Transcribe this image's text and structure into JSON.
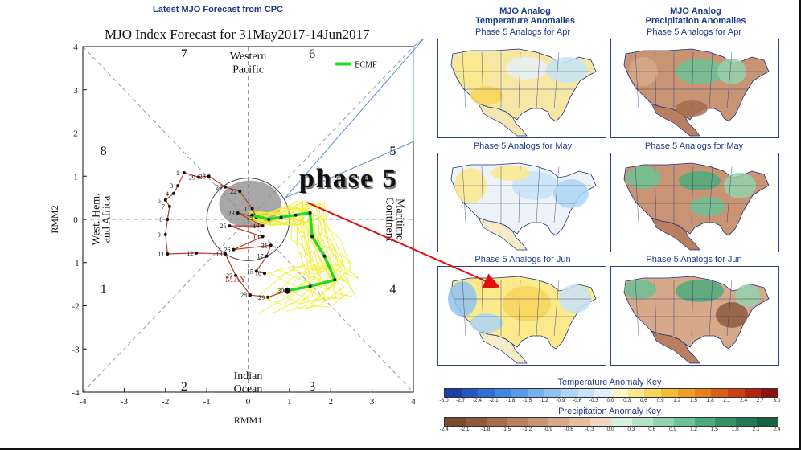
{
  "header": {
    "cpc_title": "Latest MJO Forecast from CPC",
    "main_title": "MJO Index Forecast for 31May2017-14Jun2017"
  },
  "chart_data": [
    {
      "type": "scatter",
      "title": "MJO Index Forecast for 31May2017-14Jun2017",
      "xlabel": "RMM1",
      "ylabel": "RMM2",
      "xlim": [
        -4,
        4
      ],
      "ylim": [
        -4,
        4
      ],
      "x_ticks": [
        "-4",
        "-3",
        "-2",
        "-1",
        "0",
        "1",
        "2",
        "3",
        "4"
      ],
      "y_ticks": [
        "-4",
        "-3",
        "-2",
        "-1",
        "0",
        "1",
        "2",
        "3",
        "4"
      ],
      "phase_numbers": [
        "1",
        "2",
        "3",
        "4",
        "5",
        "6",
        "7",
        "8"
      ],
      "region_labels": {
        "top": [
          "Western",
          "Pacific"
        ],
        "bottom": [
          "Indian",
          "Ocean"
        ],
        "left": [
          "West. Hem.",
          "and Africa"
        ],
        "right": [
          "Maritime",
          "Continent"
        ]
      },
      "legend": {
        "label": "ECMF",
        "color": "#22dd22",
        "placement": "top-right"
      },
      "month_label": "MAY",
      "observed": {
        "color": "#c0392b",
        "points": [
          {
            "x": 0.95,
            "y": -1.65,
            "label": "30"
          },
          {
            "x": 0.48,
            "y": -1.8,
            "label": "29"
          },
          {
            "x": 0.05,
            "y": -1.75,
            "label": "28"
          },
          {
            "x": -0.3,
            "y": -1.3,
            "label": "27"
          },
          {
            "x": -0.55,
            "y": -0.8,
            "label": "13"
          },
          {
            "x": -1.25,
            "y": -0.78,
            "label": "12"
          },
          {
            "x": -1.95,
            "y": -0.8,
            "label": "11"
          },
          {
            "x": -2.0,
            "y": -0.35,
            "label": "9"
          },
          {
            "x": -1.95,
            "y": 0.0,
            "label": "8"
          },
          {
            "x": -1.9,
            "y": 0.3,
            "label": "7"
          },
          {
            "x": -2.0,
            "y": 0.45,
            "label": "5"
          },
          {
            "x": -1.8,
            "y": 0.6,
            "label": "4"
          },
          {
            "x": -1.7,
            "y": 0.78,
            "label": "3"
          },
          {
            "x": -1.55,
            "y": 1.08,
            "label": "1"
          },
          {
            "x": -1.2,
            "y": 0.98,
            "label": "29"
          },
          {
            "x": -0.95,
            "y": 1.0,
            "label": "28"
          },
          {
            "x": -0.55,
            "y": 0.75,
            "label": "24"
          },
          {
            "x": -0.2,
            "y": 0.65,
            "label": "22"
          },
          {
            "x": 0.1,
            "y": 0.25,
            "label": "1"
          },
          {
            "x": 0.2,
            "y": 0.05,
            "label": "25"
          },
          {
            "x": -0.25,
            "y": 0.15,
            "label": "23"
          },
          {
            "x": 0.35,
            "y": -0.15,
            "label": "19"
          },
          {
            "x": -0.45,
            "y": -0.15,
            "label": "25"
          },
          {
            "x": 0.35,
            "y": -0.4,
            "label": "18"
          },
          {
            "x": -0.35,
            "y": -0.7,
            "label": "26"
          },
          {
            "x": 0.55,
            "y": -0.6,
            "label": "21"
          },
          {
            "x": 0.45,
            "y": -0.85,
            "label": "17"
          },
          {
            "x": 0.2,
            "y": -1.2,
            "label": "15"
          },
          {
            "x": 0.4,
            "y": -1.25,
            "label": "16"
          }
        ]
      },
      "forecast": {
        "name": "ECMF",
        "color": "#22dd22",
        "points": [
          {
            "x": 0.1,
            "y": 0.1
          },
          {
            "x": 0.5,
            "y": 0.0
          },
          {
            "x": 0.8,
            "y": 0.05
          },
          {
            "x": 1.15,
            "y": 0.1
          },
          {
            "x": 1.5,
            "y": 0.15
          },
          {
            "x": 1.55,
            "y": -0.4
          },
          {
            "x": 1.85,
            "y": -0.85
          },
          {
            "x": 2.1,
            "y": -1.4
          },
          {
            "x": 1.5,
            "y": -1.55
          },
          {
            "x": 0.95,
            "y": -1.65
          }
        ]
      }
    }
  ],
  "maps": {
    "temp_title": [
      "MJO Analog",
      "Temperature Anomalies"
    ],
    "precip_title": [
      "MJO Analog",
      "Precipitation Anomalies"
    ],
    "rows": [
      {
        "temp_caption": "Phase 5 Analogs for Apr",
        "precip_caption": "Phase 5 Analogs for Apr"
      },
      {
        "temp_caption": "Phase 5 Analogs for May",
        "precip_caption": "Phase 5 Analogs for May"
      },
      {
        "temp_caption": "Phase 5 Analogs for Jun",
        "precip_caption": "Phase 5 Analogs for Jun"
      }
    ]
  },
  "temperature_key": {
    "title": "Temperature Anomaly Key",
    "ticks": [
      "-3.0",
      "-2.7",
      "-2.4",
      "-2.1",
      "-1.8",
      "-1.5",
      "-1.2",
      "-0.9",
      "-0.6",
      "-0.3",
      "0.0",
      "0.3",
      "0.6",
      "0.9",
      "1.2",
      "1.5",
      "1.8",
      "2.1",
      "2.4",
      "2.7",
      "3.0"
    ],
    "colors": [
      "#1b3ea8",
      "#2456c6",
      "#2f6fd8",
      "#3f86e4",
      "#589ae9",
      "#74afee",
      "#91c3f2",
      "#acd5f6",
      "#c6e3f8",
      "#e0eff9",
      "#fdf6c6",
      "#fbe98c",
      "#f7d55a",
      "#f3bd38",
      "#ee9f25",
      "#e67f1c",
      "#d95f17",
      "#c94114",
      "#b12410",
      "#8e0f0c"
    ]
  },
  "precipitation_key": {
    "title": "Precipitation Anomaly Key",
    "ticks": [
      "-2.4",
      "-2.1",
      "-1.8",
      "-1.5",
      "-1.2",
      "-0.9",
      "-0.6",
      "-0.3",
      "0.0",
      "0.3",
      "0.6",
      "0.9",
      "1.2",
      "1.5",
      "1.8",
      "2.1",
      "2.4"
    ],
    "colors": [
      "#7a4b33",
      "#8e5b40",
      "#a56c4e",
      "#b97f5f",
      "#c99473",
      "#d6a98a",
      "#e2bfa3",
      "#eed6c2",
      "#d8efe0",
      "#b7e2c7",
      "#93d2ad",
      "#6ec194",
      "#4cab7c",
      "#349265",
      "#237a52",
      "#176242"
    ]
  },
  "overlay": {
    "text": "phase 5"
  }
}
